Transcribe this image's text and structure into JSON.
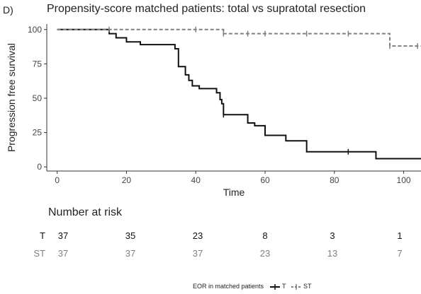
{
  "panel_label": "D)",
  "chart_data": {
    "type": "line",
    "title": "Propensity-score matched patients: total vs supratotal resection",
    "xlabel": "Time",
    "ylabel": "Progression free survival",
    "xlim": [
      -3,
      105
    ],
    "ylim": [
      -3,
      104
    ],
    "xticks": [
      0,
      20,
      40,
      60,
      80,
      100
    ],
    "yticks": [
      0,
      25,
      50,
      75,
      100
    ],
    "grid": false,
    "legend_title": "EOR in matched patients",
    "legend_position": "bottom",
    "series": [
      {
        "name": "T",
        "color": "#111111",
        "dash": "solid",
        "x": [
          0,
          15,
          17,
          20,
          24,
          34,
          35,
          37,
          38,
          39,
          41,
          46,
          47,
          47.5,
          48,
          55,
          57,
          60,
          66,
          72,
          92,
          105
        ],
        "y": [
          100,
          97,
          94,
          91,
          89,
          86,
          73,
          67,
          63,
          59,
          57,
          54,
          49,
          46,
          38,
          32,
          30,
          23,
          19,
          11,
          6,
          6
        ],
        "censored": [
          {
            "x": 48,
            "y": 38
          },
          {
            "x": 84,
            "y": 11
          }
        ]
      },
      {
        "name": "ST",
        "color": "#808080",
        "dash": "dashed",
        "x": [
          0,
          48,
          96,
          105
        ],
        "y": [
          100,
          97,
          88,
          88
        ],
        "censored": [
          {
            "x": 15,
            "y": 100
          },
          {
            "x": 40,
            "y": 100
          },
          {
            "x": 48,
            "y": 97
          },
          {
            "x": 55,
            "y": 97
          },
          {
            "x": 60,
            "y": 97
          },
          {
            "x": 72,
            "y": 97
          },
          {
            "x": 84,
            "y": 97
          },
          {
            "x": 96,
            "y": 88
          },
          {
            "x": 104,
            "y": 88
          }
        ]
      }
    ]
  },
  "risk_table": {
    "title": "Number at risk",
    "times": [
      0,
      20,
      40,
      60,
      80,
      100
    ],
    "rows": [
      {
        "group": "T",
        "color": "#111111",
        "counts": [
          "37",
          "35",
          "23",
          "8",
          "3",
          "1"
        ]
      },
      {
        "group": "ST",
        "color": "#808080",
        "counts": [
          "37",
          "37",
          "37",
          "23",
          "13",
          "7"
        ]
      }
    ]
  }
}
